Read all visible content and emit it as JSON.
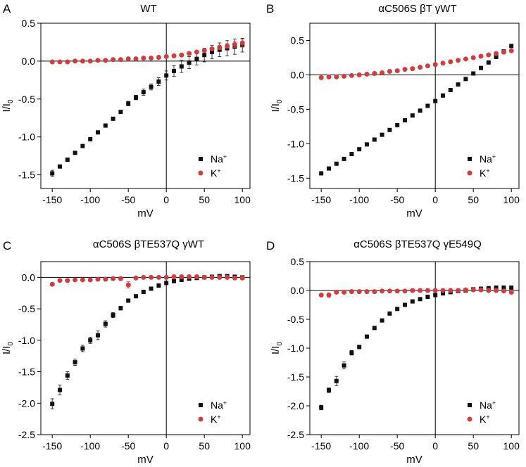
{
  "colors": {
    "na": "#111111",
    "k": "#d23c3c",
    "axis": "#000000"
  },
  "legend_position": "bottom-right",
  "chart_data": [
    {
      "type": "scatter",
      "panel": "A",
      "title": "WT",
      "xlabel": "mV",
      "ylabel_main": "I/I",
      "ylabel_sub": "0",
      "xlim": [
        -165,
        110
      ],
      "ylim": [
        -1.68,
        0.5
      ],
      "xticks": [
        -150,
        -100,
        -50,
        0,
        50,
        100
      ],
      "xtick_labels": [
        "-150",
        "-100",
        "-50",
        "0",
        "50",
        "100"
      ],
      "yticks": [
        0.5,
        0,
        -0.5,
        -1.0,
        -1.5
      ],
      "ytick_labels": [
        "0.5",
        "0.0",
        "-0.5",
        "-1.0",
        "-1.5"
      ],
      "series": [
        {
          "name_main": "Na",
          "name_sup": "+",
          "marker": "square",
          "color": "#111111",
          "x": [
            -150,
            -140,
            -130,
            -120,
            -110,
            -100,
            -90,
            -80,
            -70,
            -60,
            -50,
            -40,
            -30,
            -20,
            -10,
            0,
            10,
            20,
            30,
            40,
            50,
            60,
            70,
            80,
            90,
            100
          ],
          "y": [
            -1.48,
            -1.39,
            -1.3,
            -1.21,
            -1.12,
            -1.03,
            -0.94,
            -0.85,
            -0.76,
            -0.67,
            -0.56,
            -0.48,
            -0.41,
            -0.34,
            -0.27,
            -0.19,
            -0.13,
            -0.07,
            -0.02,
            0.03,
            0.08,
            0.12,
            0.15,
            0.17,
            0.19,
            0.21
          ],
          "err": [
            0.04,
            0.02,
            0.02,
            0.02,
            0.02,
            0.02,
            0.02,
            0.02,
            0.02,
            0.02,
            0.03,
            0.03,
            0.04,
            0.04,
            0.05,
            0.06,
            0.07,
            0.08,
            0.08,
            0.08,
            0.09,
            0.09,
            0.09,
            0.1,
            0.1,
            0.09
          ]
        },
        {
          "name_main": "K",
          "name_sup": "+",
          "marker": "circle",
          "color": "#d23c3c",
          "x": [
            -150,
            -140,
            -130,
            -120,
            -110,
            -100,
            -90,
            -80,
            -70,
            -60,
            -50,
            -40,
            -30,
            -20,
            -10,
            0,
            10,
            20,
            30,
            40,
            50,
            60,
            70,
            80,
            90,
            100
          ],
          "y": [
            -0.01,
            -0.01,
            -0.01,
            0.0,
            0.0,
            0.0,
            0.01,
            0.01,
            0.02,
            0.02,
            0.03,
            0.03,
            0.04,
            0.04,
            0.05,
            0.06,
            0.07,
            0.08,
            0.1,
            0.12,
            0.14,
            0.16,
            0.18,
            0.2,
            0.22,
            0.24
          ],
          "err": [
            0.005,
            0.005,
            0.005,
            0.005,
            0.005,
            0.005,
            0.005,
            0.005,
            0.005,
            0.005,
            0.005,
            0.005,
            0.005,
            0.005,
            0.005,
            0.005,
            0.01,
            0.01,
            0.01,
            0.01,
            0.02,
            0.02,
            0.03,
            0.03,
            0.04,
            0.05
          ]
        }
      ]
    },
    {
      "type": "scatter",
      "panel": "B",
      "title": "αC506S βT γWT",
      "xlabel": "mV",
      "ylabel_main": "I/I",
      "ylabel_sub": "0",
      "xlim": [
        -165,
        110
      ],
      "ylim": [
        -1.65,
        0.75
      ],
      "xticks": [
        -150,
        -100,
        -50,
        0,
        50,
        100
      ],
      "xtick_labels": [
        "-150",
        "-100",
        "-50",
        "0",
        "50",
        "100"
      ],
      "yticks": [
        0.5,
        0,
        -0.5,
        -1.0,
        -1.5
      ],
      "ytick_labels": [
        "0.5",
        "0.0",
        "-0.5",
        "-1.0",
        "-1.5"
      ],
      "series": [
        {
          "name_main": "Na",
          "name_sup": "+",
          "marker": "square",
          "color": "#111111",
          "x": [
            -150,
            -140,
            -130,
            -120,
            -110,
            -100,
            -90,
            -80,
            -70,
            -60,
            -50,
            -40,
            -30,
            -20,
            -10,
            0,
            10,
            20,
            30,
            40,
            50,
            60,
            70,
            80,
            90,
            100
          ],
          "y": [
            -1.43,
            -1.36,
            -1.29,
            -1.22,
            -1.15,
            -1.08,
            -1.01,
            -0.94,
            -0.87,
            -0.8,
            -0.73,
            -0.66,
            -0.59,
            -0.52,
            -0.45,
            -0.38,
            -0.3,
            -0.22,
            -0.14,
            -0.06,
            0.02,
            0.1,
            0.18,
            0.26,
            0.34,
            0.42
          ],
          "err": []
        },
        {
          "name_main": "K",
          "name_sup": "+",
          "marker": "circle",
          "color": "#d23c3c",
          "x": [
            -150,
            -140,
            -130,
            -120,
            -110,
            -100,
            -90,
            -80,
            -70,
            -60,
            -50,
            -40,
            -30,
            -20,
            -10,
            0,
            10,
            20,
            30,
            40,
            50,
            60,
            70,
            80,
            90,
            100
          ],
          "y": [
            -0.04,
            -0.03,
            -0.03,
            -0.02,
            -0.01,
            0.0,
            0.01,
            0.02,
            0.03,
            0.05,
            0.06,
            0.08,
            0.09,
            0.11,
            0.13,
            0.15,
            0.17,
            0.19,
            0.21,
            0.23,
            0.25,
            0.27,
            0.29,
            0.31,
            0.33,
            0.35
          ],
          "err": []
        }
      ]
    },
    {
      "type": "scatter",
      "panel": "C",
      "title": "αC506S βTE537Q γWT",
      "xlabel": "mV",
      "ylabel_main": "I/I",
      "ylabel_sub": "0",
      "xlim": [
        -165,
        110
      ],
      "ylim": [
        -2.5,
        0.25
      ],
      "xticks": [
        -150,
        -100,
        -50,
        0,
        50,
        100
      ],
      "xtick_labels": [
        "-150",
        "-100",
        "-50",
        "0",
        "50",
        "100"
      ],
      "yticks": [
        0,
        -0.5,
        -1.0,
        -1.5,
        -2.0,
        -2.5
      ],
      "ytick_labels": [
        "0.0",
        "-0.5",
        "-1.0",
        "-1.5",
        "-2.0",
        "-2.5"
      ],
      "series": [
        {
          "name_main": "Na",
          "name_sup": "+",
          "marker": "square",
          "color": "#111111",
          "x": [
            -150,
            -140,
            -130,
            -120,
            -110,
            -100,
            -90,
            -80,
            -70,
            -60,
            -50,
            -40,
            -30,
            -20,
            -10,
            0,
            10,
            20,
            30,
            40,
            50,
            60,
            70,
            80,
            90,
            100
          ],
          "y": [
            -2.01,
            -1.79,
            -1.56,
            -1.35,
            -1.13,
            -1.0,
            -0.92,
            -0.74,
            -0.6,
            -0.49,
            -0.37,
            -0.3,
            -0.23,
            -0.18,
            -0.13,
            -0.09,
            -0.06,
            -0.04,
            -0.02,
            -0.01,
            0.0,
            0.01,
            0.02,
            0.02,
            0.01,
            0.0
          ],
          "err": [
            0.08,
            0.08,
            0.06,
            0.05,
            0.05,
            0.05,
            0.07,
            0.05,
            0.04,
            0.03,
            0.02,
            0.02,
            0.02,
            0.01,
            0.01,
            0.01,
            0.01,
            0.01,
            0.01,
            0.01,
            0.01,
            0.01,
            0.01,
            0.01,
            0.01,
            0.01
          ]
        },
        {
          "name_main": "K",
          "name_sup": "+",
          "marker": "circle",
          "color": "#d23c3c",
          "x": [
            -150,
            -140,
            -130,
            -120,
            -110,
            -100,
            -90,
            -80,
            -70,
            -60,
            -50,
            -40,
            -30,
            -20,
            -10,
            0,
            10,
            20,
            30,
            40,
            50,
            60,
            70,
            80,
            90,
            100
          ],
          "y": [
            -0.11,
            -0.05,
            -0.05,
            -0.04,
            -0.04,
            -0.04,
            -0.03,
            -0.03,
            -0.02,
            -0.02,
            -0.12,
            -0.01,
            0.0,
            0.0,
            0.0,
            0.0,
            0.01,
            0.01,
            0.01,
            0.01,
            0.0,
            0.0,
            0.0,
            0.0,
            -0.01,
            -0.01
          ],
          "err": [
            0.02,
            0.01,
            0.01,
            0.01,
            0.01,
            0.01,
            0.01,
            0.01,
            0.01,
            0.01,
            0.05,
            0.01,
            0.01,
            0.01,
            0.01,
            0.01,
            0.01,
            0.01,
            0.01,
            0.01,
            0.01,
            0.01,
            0.01,
            0.01,
            0.02,
            0.02
          ]
        }
      ]
    },
    {
      "type": "scatter",
      "panel": "D",
      "title": "αC506S βTE537Q γE549Q",
      "xlabel": "mV",
      "ylabel_main": "I/I",
      "ylabel_sub": "0",
      "xlim": [
        -165,
        110
      ],
      "ylim": [
        -2.5,
        0.5
      ],
      "xticks": [
        -150,
        -100,
        -50,
        0,
        50,
        100
      ],
      "xtick_labels": [
        "-150",
        "-100",
        "-50",
        "0",
        "50",
        "100"
      ],
      "yticks": [
        0.5,
        0,
        -0.5,
        -1.0,
        -1.5,
        -2.0,
        -2.5
      ],
      "ytick_labels": [
        "0.5",
        "0.0",
        "-0.5",
        "-1.0",
        "-1.5",
        "-2.0",
        "-2.5"
      ],
      "series": [
        {
          "name_main": "Na",
          "name_sup": "+",
          "marker": "square",
          "color": "#111111",
          "x": [
            -150,
            -140,
            -130,
            -120,
            -110,
            -100,
            -90,
            -80,
            -70,
            -60,
            -50,
            -40,
            -30,
            -20,
            -10,
            0,
            10,
            20,
            30,
            40,
            50,
            60,
            70,
            80,
            90,
            100
          ],
          "y": [
            -2.03,
            -1.73,
            -1.57,
            -1.3,
            -1.08,
            -0.98,
            -0.8,
            -0.65,
            -0.52,
            -0.4,
            -0.32,
            -0.25,
            -0.19,
            -0.15,
            -0.11,
            -0.08,
            -0.05,
            -0.03,
            -0.01,
            0.0,
            0.02,
            0.03,
            0.04,
            0.05,
            0.05,
            0.05
          ],
          "err": [
            0.04,
            0.04,
            0.08,
            0.06,
            0.04,
            0.03,
            0.02,
            0.02,
            0.02,
            0.02,
            0.01,
            0.01,
            0.01,
            0.01,
            0.01,
            0.01,
            0.01,
            0.01,
            0.01,
            0.01,
            0.01,
            0.01,
            0.01,
            0.01,
            0.01,
            0.01
          ]
        },
        {
          "name_main": "K",
          "name_sup": "+",
          "marker": "circle",
          "color": "#d23c3c",
          "x": [
            -150,
            -140,
            -130,
            -120,
            -110,
            -100,
            -90,
            -80,
            -70,
            -60,
            -50,
            -40,
            -30,
            -20,
            -10,
            0,
            10,
            20,
            30,
            40,
            50,
            60,
            70,
            80,
            90,
            100
          ],
          "y": [
            -0.08,
            -0.08,
            -0.03,
            -0.03,
            -0.02,
            -0.02,
            -0.02,
            -0.02,
            -0.01,
            -0.01,
            -0.01,
            -0.01,
            0.0,
            0.0,
            0.0,
            0.0,
            0.0,
            0.0,
            0.0,
            0.01,
            0.01,
            0.01,
            0.0,
            0.0,
            -0.01,
            -0.03
          ],
          "err": [
            0.02,
            0.04,
            0.01,
            0.01,
            0.01,
            0.01,
            0.01,
            0.01,
            0.01,
            0.01,
            0.01,
            0.01,
            0.01,
            0.01,
            0.01,
            0.01,
            0.01,
            0.01,
            0.01,
            0.01,
            0.01,
            0.01,
            0.01,
            0.02,
            0.02,
            0.03
          ]
        }
      ]
    }
  ]
}
